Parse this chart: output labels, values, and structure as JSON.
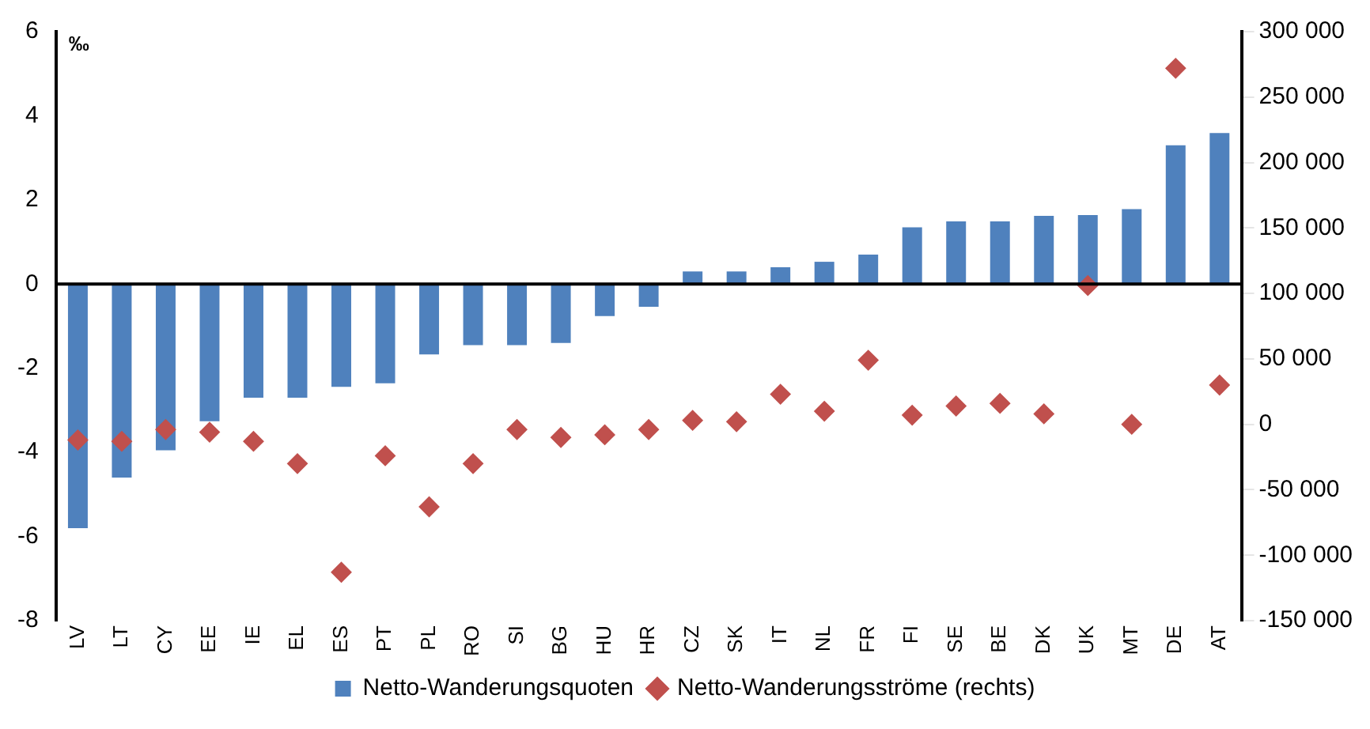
{
  "chart_data": {
    "type": "bar",
    "ylabel": "‰",
    "categories": [
      "LV",
      "LT",
      "CY",
      "EE",
      "IE",
      "EL",
      "ES",
      "PT",
      "PL",
      "RO",
      "SI",
      "BG",
      "HU",
      "HR",
      "CZ",
      "SK",
      "IT",
      "NL",
      "FR",
      "FI",
      "SE",
      "BE",
      "DK",
      "UK",
      "MT",
      "DE",
      "AT"
    ],
    "series": [
      {
        "name": "Netto-Wanderungsquoten",
        "color": "#4f81bd",
        "values": [
          -5.8,
          -4.6,
          -3.95,
          -3.26,
          -2.7,
          -2.7,
          -2.44,
          -2.36,
          -1.67,
          -1.45,
          -1.45,
          -1.4,
          -0.76,
          -0.54,
          0.3,
          0.3,
          0.4,
          0.53,
          0.7,
          1.35,
          1.49,
          1.49,
          1.62,
          1.64,
          1.78,
          3.3,
          3.59
        ]
      },
      {
        "name": "Netto-Wanderungsströme (rechts)",
        "type": "scatter",
        "axis": "y2",
        "color": "#c0504d",
        "values": [
          -12000,
          -13000,
          -4000,
          -6000,
          -13000,
          -30000,
          -113000,
          -24000,
          -63000,
          -30000,
          -4000,
          -10000,
          -8000,
          -4000,
          3000,
          2000,
          23000,
          10000,
          49000,
          7000,
          14000,
          16000,
          8000,
          106000,
          0,
          272000,
          30000
        ]
      }
    ],
    "ylim": [
      -8,
      6
    ],
    "yticks": [
      -8,
      -6,
      -4,
      -2,
      0,
      2,
      4,
      6
    ],
    "y2lim": [
      -150000,
      300000
    ],
    "y2ticks": [
      {
        "value": -150000,
        "label": "-150 000"
      },
      {
        "value": -100000,
        "label": "-100 000"
      },
      {
        "value": -50000,
        "label": "-50 000"
      },
      {
        "value": 0,
        "label": "0"
      },
      {
        "value": 50000,
        "label": "50 000"
      },
      {
        "value": 100000,
        "label": "100 000"
      },
      {
        "value": 150000,
        "label": "150 000"
      },
      {
        "value": 200000,
        "label": "200 000"
      },
      {
        "value": 250000,
        "label": "250 000"
      },
      {
        "value": 300000,
        "label": "300 000"
      }
    ],
    "ref_lines": [
      {
        "axis": "y",
        "value": 0,
        "color": "#000000"
      }
    ],
    "marker": "diamond",
    "legend": "bottom",
    "grid": false
  }
}
